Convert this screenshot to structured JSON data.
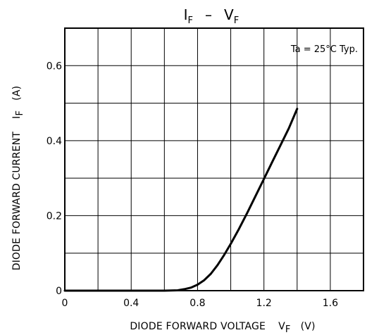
{
  "chart_data": {
    "type": "line",
    "title": {
      "main": "I",
      "main_sub": "F",
      "dash": "–",
      "second": "V",
      "second_sub": "F"
    },
    "annotation": "Ta = 25°C  Typ.",
    "xlabel": {
      "text": "DIODE  FORWARD  VOLTAGE",
      "symbol": "V",
      "symbol_sub": "F",
      "unit": "(V)"
    },
    "ylabel": {
      "text": "DIODE  FORWARD  CURRENT",
      "symbol": "I",
      "symbol_sub": "F",
      "unit": "(A)"
    },
    "xlim": [
      0,
      1.8
    ],
    "ylim": [
      0,
      0.7
    ],
    "x_ticks": [
      "0",
      "0.4",
      "0.8",
      "1.2",
      "1.6"
    ],
    "y_ticks": [
      "0",
      "0.2",
      "0.4",
      "0.6"
    ],
    "grid": true,
    "series": [
      {
        "x": [
          0,
          0.3,
          0.6,
          0.68,
          0.72,
          0.76,
          0.8,
          0.84,
          0.88,
          0.92,
          0.96,
          1.0,
          1.05,
          1.1,
          1.15,
          1.2,
          1.25,
          1.3,
          1.35,
          1.4
        ],
        "y": [
          0,
          0,
          0,
          0.001,
          0.004,
          0.008,
          0.016,
          0.028,
          0.045,
          0.068,
          0.095,
          0.125,
          0.165,
          0.208,
          0.253,
          0.298,
          0.343,
          0.388,
          0.433,
          0.485
        ]
      }
    ]
  }
}
